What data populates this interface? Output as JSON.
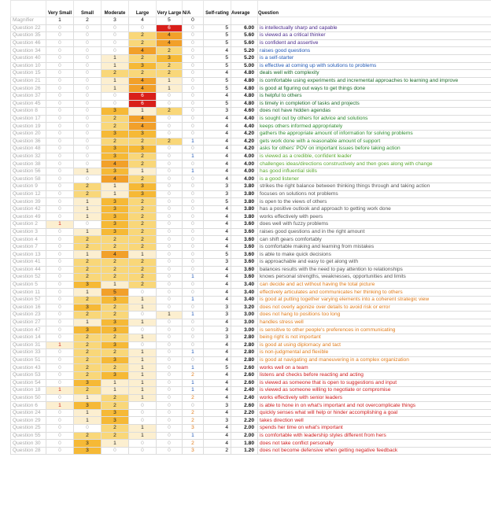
{
  "header": {
    "very_small": "Very Small",
    "small": "Small",
    "moderate": "Moderate",
    "large": "Large",
    "very_large": "Very Large",
    "na": "N/A",
    "self_rating": "Self-rating",
    "average": "Average",
    "question": "Question"
  },
  "magnifier": {
    "label": "Magnifier",
    "values": [
      "1",
      "2",
      "3",
      "4",
      "5",
      "0"
    ]
  },
  "palette": {
    "c1": "#fcefd0",
    "c2": "#f9d779",
    "c3": "#f6b936",
    "c4": "#f2a02a",
    "c6": "#d91f1a",
    "c7": "#b8890a",
    "c8": "#e06060",
    "green": "#2e8b2e",
    "dark_green": "#1d6b2a",
    "blue": "#1f57b5",
    "light_green": "#5aa82e",
    "orange": "#e07b1a",
    "red": "#cf1b1b",
    "purple": "#4b2a8c",
    "gray": "#555555"
  },
  "rows": [
    {
      "label": "Question 22",
      "counts": [
        "0",
        "0",
        "0",
        "0",
        "6",
        "0"
      ],
      "self": "5",
      "avg": "6.00",
      "text": "is intellectually sharp and capable",
      "tc": "purple"
    },
    {
      "label": "Question 35",
      "counts": [
        "0",
        "0",
        "0",
        "2",
        "4",
        "0"
      ],
      "self": "5",
      "avg": "5.60",
      "text": "is viewed as a critical thinker",
      "tc": "purple"
    },
    {
      "label": "Question 46",
      "counts": [
        "0",
        "0",
        "0",
        "2",
        "4",
        "0"
      ],
      "self": "5",
      "avg": "5.60",
      "text": "is confident and assertive",
      "tc": "purple"
    },
    {
      "label": "Question 34",
      "counts": [
        "0",
        "0",
        "0",
        "4",
        "2",
        "0"
      ],
      "self": "4",
      "avg": "5.20",
      "text": "raises good questions",
      "tc": "blue"
    },
    {
      "label": "Question 40",
      "counts": [
        "0",
        "0",
        "1",
        "2",
        "3",
        "0"
      ],
      "self": "5",
      "avg": "5.20",
      "text": "is a self-starter",
      "tc": "blue"
    },
    {
      "label": "Question 10",
      "counts": [
        "0",
        "0",
        "1",
        "3",
        "2",
        "0"
      ],
      "self": "5",
      "avg": "5.00",
      "text": "is effective at coming up with solutions to problems",
      "tc": "blue"
    },
    {
      "label": "Question 15",
      "counts": [
        "0",
        "0",
        "2",
        "2",
        "2",
        "0"
      ],
      "self": "4",
      "avg": "4.80",
      "text": "deals well with complexity",
      "tc": "dark_green"
    },
    {
      "label": "Question 21",
      "counts": [
        "0",
        "0",
        "1",
        "4",
        "1",
        "0"
      ],
      "self": "5",
      "avg": "4.80",
      "text": "is comfortable using experiments and incremental approaches to learning and improve",
      "tc": "dark_green"
    },
    {
      "label": "Question 26",
      "counts": [
        "0",
        "0",
        "1",
        "4",
        "1",
        "0"
      ],
      "self": "5",
      "avg": "4.80",
      "text": "is good at figuring out ways to get things done",
      "tc": "dark_green"
    },
    {
      "label": "Question 37",
      "counts": [
        "0",
        "0",
        "0",
        "6",
        "0",
        "0"
      ],
      "self": "4",
      "avg": "4.80",
      "text": "is helpful to others",
      "tc": "dark_green"
    },
    {
      "label": "Question 45",
      "counts": [
        "0",
        "0",
        "0",
        "6",
        "0",
        "0"
      ],
      "self": "5",
      "avg": "4.80",
      "text": "is timely in completion of tasks and projects",
      "tc": "dark_green"
    },
    {
      "label": "Question 8",
      "counts": [
        "0",
        "0",
        "3",
        "1",
        "2",
        "0"
      ],
      "self": "3",
      "avg": "4.60",
      "text": "does not have hidden agendas",
      "tc": "dark_green"
    },
    {
      "label": "Question 17",
      "counts": [
        "0",
        "0",
        "2",
        "4",
        "0",
        "0"
      ],
      "self": "4",
      "avg": "4.40",
      "text": "is sought out by others for advice and solutions",
      "tc": "green"
    },
    {
      "label": "Question 19",
      "counts": [
        "0",
        "0",
        "2",
        "4",
        "0",
        "0"
      ],
      "self": "4",
      "avg": "4.40",
      "text": "keeps others informed appropriately",
      "tc": "green"
    },
    {
      "label": "Question 20",
      "counts": [
        "0",
        "0",
        "3",
        "3",
        "0",
        "0"
      ],
      "self": "4",
      "avg": "4.20",
      "text": "gathers the appropriate amount of information for solving problems",
      "tc": "green"
    },
    {
      "label": "Question 36",
      "counts": [
        "0",
        "0",
        "2",
        "2",
        "2",
        "1"
      ],
      "self": "4",
      "avg": "4.20",
      "text": "gets work done with a reasonable amount of support",
      "tc": "green"
    },
    {
      "label": "Question 48",
      "counts": [
        "0",
        "0",
        "3",
        "3",
        "0",
        "0"
      ],
      "self": "4",
      "avg": "4.20",
      "text": "asks for others' POV on important issues before taking action",
      "tc": "green"
    },
    {
      "label": "Question 32",
      "counts": [
        "0",
        "0",
        "3",
        "2",
        "0",
        "1"
      ],
      "self": "4",
      "avg": "4.00",
      "text": "is viewed as a credible, confident leader",
      "tc": "light_green"
    },
    {
      "label": "Question 38",
      "counts": [
        "0",
        "0",
        "4",
        "2",
        "0",
        "0"
      ],
      "self": "4",
      "avg": "4.00",
      "text": "challenges ideas/directions constructively and then goes along with change",
      "tc": "light_green"
    },
    {
      "label": "Question 56",
      "counts": [
        "0",
        "1",
        "3",
        "1",
        "0",
        "1"
      ],
      "self": "4",
      "avg": "4.00",
      "text": "has good influential skills",
      "tc": "light_green"
    },
    {
      "label": "Question 58",
      "counts": [
        "0",
        "0",
        "4",
        "2",
        "0",
        "0"
      ],
      "self": "4",
      "avg": "4.00",
      "text": "is a good listener",
      "tc": "light_green"
    },
    {
      "label": "Question 9",
      "counts": [
        "0",
        "2",
        "1",
        "3",
        "0",
        "0"
      ],
      "self": "3",
      "avg": "3.80",
      "text": "strikes the right balance between thinking things through and taking action",
      "tc": "gray"
    },
    {
      "label": "Question 12",
      "counts": [
        "0",
        "2",
        "1",
        "3",
        "0",
        "0"
      ],
      "self": "3",
      "avg": "3.80",
      "text": "focuses on solutions not problems",
      "tc": "gray"
    },
    {
      "label": "Question 39",
      "counts": [
        "0",
        "1",
        "3",
        "2",
        "0",
        "0"
      ],
      "self": "5",
      "avg": "3.80",
      "text": "is open to the views of others",
      "tc": "gray"
    },
    {
      "label": "Question 42",
      "counts": [
        "0",
        "1",
        "3",
        "2",
        "0",
        "0"
      ],
      "self": "4",
      "avg": "3.80",
      "text": "has a positive outlook and approach to getting work done",
      "tc": "gray"
    },
    {
      "label": "Question 49",
      "counts": [
        "0",
        "1",
        "3",
        "2",
        "0",
        "0"
      ],
      "self": "4",
      "avg": "3.80",
      "text": "works effectively with peers",
      "tc": "gray"
    },
    {
      "label": "Question 2",
      "counts": [
        "1",
        "0",
        "3",
        "2",
        "0",
        "0"
      ],
      "self": "4",
      "avg": "3.60",
      "text": "does well with fuzzy problems",
      "tc": "gray"
    },
    {
      "label": "Question 3",
      "counts": [
        "0",
        "1",
        "3",
        "2",
        "0",
        "0"
      ],
      "self": "4",
      "avg": "3.60",
      "text": "raises good questions and in the right amount",
      "tc": "gray"
    },
    {
      "label": "Question 4",
      "counts": [
        "0",
        "2",
        "2",
        "2",
        "0",
        "0"
      ],
      "self": "4",
      "avg": "3.60",
      "text": "can shift gears comfortably",
      "tc": "gray"
    },
    {
      "label": "Question 7",
      "counts": [
        "0",
        "2",
        "2",
        "2",
        "0",
        "0"
      ],
      "self": "4",
      "avg": "3.60",
      "text": "is comfortable making and learning from mistakes",
      "tc": "gray"
    },
    {
      "label": "Question 13",
      "counts": [
        "0",
        "1",
        "4",
        "1",
        "0",
        "0"
      ],
      "self": "5",
      "avg": "3.60",
      "text": "is able to make quick decisions",
      "tc": "gray"
    },
    {
      "label": "Question 41",
      "counts": [
        "0",
        "2",
        "2",
        "2",
        "0",
        "0"
      ],
      "self": "3",
      "avg": "3.60",
      "text": "is approachable and easy to get along with",
      "tc": "gray"
    },
    {
      "label": "Question 44",
      "counts": [
        "0",
        "2",
        "2",
        "2",
        "0",
        "0"
      ],
      "self": "4",
      "avg": "3.60",
      "text": "balances results with the need to pay attention to relationships",
      "tc": "gray"
    },
    {
      "label": "Question 52",
      "counts": [
        "0",
        "2",
        "2",
        "2",
        "0",
        "1"
      ],
      "self": "4",
      "avg": "3.60",
      "text": "knows personal strengths, weaknesses, opportunities and limits",
      "tc": "gray"
    },
    {
      "label": "Question 5",
      "counts": [
        "0",
        "3",
        "1",
        "2",
        "0",
        "0"
      ],
      "self": "4",
      "avg": "3.40",
      "text": "can decide and act without having the total picture",
      "tc": "orange"
    },
    {
      "label": "Question 11",
      "counts": [
        "0",
        "1",
        "5",
        "0",
        "0",
        "0"
      ],
      "self": "4",
      "avg": "3.40",
      "text": "effectively articulates and communicates her thinking to others",
      "tc": "orange"
    },
    {
      "label": "Question 57",
      "counts": [
        "0",
        "2",
        "3",
        "1",
        "0",
        "1"
      ],
      "self": "4",
      "avg": "3.40",
      "text": "is good at putting together varying elements into a coherent strategic view",
      "tc": "orange"
    },
    {
      "label": "Question 16",
      "counts": [
        "0",
        "3",
        "2",
        "1",
        "0",
        "0"
      ],
      "self": "3",
      "avg": "3.20",
      "text": "does not overly agonize over details to avoid risk or error",
      "tc": "orange"
    },
    {
      "label": "Question 23",
      "counts": [
        "0",
        "2",
        "2",
        "0",
        "1",
        "1"
      ],
      "self": "3",
      "avg": "3.00",
      "text": "does not hang to positions too long",
      "tc": "orange"
    },
    {
      "label": "Question 27",
      "counts": [
        "0",
        "1",
        "3",
        "1",
        "0",
        "0"
      ],
      "self": "4",
      "avg": "3.00",
      "text": "handles stress well",
      "tc": "orange"
    },
    {
      "label": "Question 47",
      "counts": [
        "0",
        "3",
        "3",
        "0",
        "0",
        "0"
      ],
      "self": "3",
      "avg": "3.00",
      "text": "is sensitive to other people's preferences in communicating",
      "tc": "orange"
    },
    {
      "label": "Question 14",
      "counts": [
        "0",
        "2",
        "2",
        "1",
        "0",
        "0"
      ],
      "self": "3",
      "avg": "2.80",
      "text": "being right is not important",
      "tc": "orange"
    },
    {
      "label": "Question 31",
      "counts": [
        "1",
        "2",
        "3",
        "0",
        "0",
        "0"
      ],
      "self": "4",
      "avg": "2.80",
      "text": "is good at using diplomacy and tact",
      "tc": "orange"
    },
    {
      "label": "Question 33",
      "counts": [
        "0",
        "2",
        "2",
        "1",
        "0",
        "1"
      ],
      "self": "4",
      "avg": "2.80",
      "text": "is non-judgmental and flexible",
      "tc": "orange"
    },
    {
      "label": "Question 51",
      "counts": [
        "0",
        "2",
        "3",
        "1",
        "0",
        "0"
      ],
      "self": "4",
      "avg": "2.80",
      "text": "is good at navigating and maneuvering in a complex organization",
      "tc": "orange"
    },
    {
      "label": "Question 43",
      "counts": [
        "0",
        "2",
        "2",
        "1",
        "0",
        "1"
      ],
      "self": "5",
      "avg": "2.60",
      "text": "works well on a team",
      "tc": "red"
    },
    {
      "label": "Question 53",
      "counts": [
        "0",
        "2",
        "3",
        "1",
        "0",
        "2"
      ],
      "self": "4",
      "avg": "2.60",
      "text": "listens and checks before reacting and acting",
      "tc": "red"
    },
    {
      "label": "Question 54",
      "counts": [
        "0",
        "3",
        "1",
        "1",
        "0",
        "1"
      ],
      "self": "4",
      "avg": "2.60",
      "text": "is viewed as someone that is open to suggestions and input",
      "tc": "red"
    },
    {
      "label": "Question 18",
      "counts": [
        "1",
        "2",
        "1",
        "1",
        "0",
        "1"
      ],
      "self": "4",
      "avg": "2.40",
      "text": "is viewed as someone willing to negotiate or compromise",
      "tc": "red"
    },
    {
      "label": "Question 50",
      "counts": [
        "0",
        "1",
        "2",
        "1",
        "0",
        "2"
      ],
      "self": "4",
      "avg": "2.40",
      "text": "works effectively with senior leaders",
      "tc": "red"
    },
    {
      "label": "Question 6",
      "counts": [
        "1",
        "3",
        "2",
        "0",
        "0",
        "0"
      ],
      "self": "3",
      "avg": "2.60",
      "text": "is able to hone in on what's important and not overcomplicate things",
      "tc": "red"
    },
    {
      "label": "Question 24",
      "counts": [
        "0",
        "1",
        "3",
        "0",
        "0",
        "2"
      ],
      "self": "4",
      "avg": "2.20",
      "text": "quickly senses what will help or hinder accomplishing a goal",
      "tc": "red"
    },
    {
      "label": "Question 29",
      "counts": [
        "0",
        "1",
        "3",
        "0",
        "0",
        "2"
      ],
      "self": "3",
      "avg": "2.20",
      "text": "takes direction well",
      "tc": "red"
    },
    {
      "label": "Question 25",
      "counts": [
        "0",
        "0",
        "2",
        "1",
        "0",
        "3"
      ],
      "self": "4",
      "avg": "2.00",
      "text": "spends her time on what's important",
      "tc": "red"
    },
    {
      "label": "Question 55",
      "counts": [
        "0",
        "2",
        "2",
        "1",
        "0",
        "1"
      ],
      "self": "4",
      "avg": "2.00",
      "text": "is comfortable with leadership styles different from hers",
      "tc": "red"
    },
    {
      "label": "Question 30",
      "counts": [
        "0",
        "3",
        "1",
        "0",
        "0",
        "2"
      ],
      "self": "4",
      "avg": "1.80",
      "text": "does not take conflict personally",
      "tc": "red"
    },
    {
      "label": "Question 28",
      "counts": [
        "0",
        "3",
        "0",
        "0",
        "0",
        "3"
      ],
      "self": "2",
      "avg": "1.20",
      "text": "does not become defensive when getting negative feedback",
      "tc": "red"
    }
  ]
}
